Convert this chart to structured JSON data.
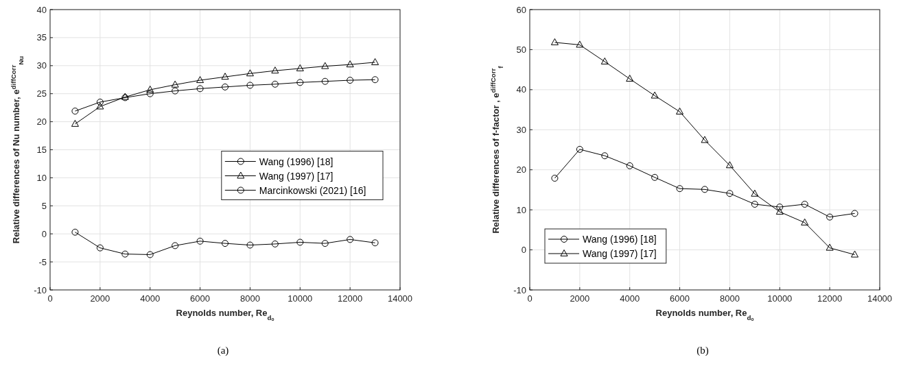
{
  "chart_data": [
    {
      "type": "line",
      "xlabel": "Reynolds number, Re$_{dₒ}$",
      "ylabel": "Relative differences of Nu number, e$^{diffCorr}$$_{Nu}$",
      "annotations": [
        "(a)"
      ],
      "x": [
        1000,
        2000,
        3000,
        4000,
        5000,
        6000,
        7000,
        8000,
        9000,
        10000,
        11000,
        12000,
        13000
      ],
      "xlim": [
        0,
        14000
      ],
      "xticks": [
        0,
        2000,
        4000,
        6000,
        8000,
        10000,
        12000,
        14000
      ],
      "ylim": [
        -10,
        40
      ],
      "yticks": [
        -10,
        -5,
        0,
        5,
        10,
        15,
        20,
        25,
        30,
        35,
        40
      ],
      "grid": true,
      "legend": "right",
      "line_style": "solid",
      "series": [
        {
          "name": "Wang (1996) [18]",
          "color": "#000000",
          "marker": "circle",
          "values": [
            21.9,
            23.5,
            24.3,
            25.0,
            25.5,
            25.9,
            26.2,
            26.5,
            26.7,
            27.0,
            27.2,
            27.4,
            27.5
          ]
        },
        {
          "name": "Wang (1997) [17]",
          "color": "#000000",
          "marker": "triangle",
          "values": [
            19.6,
            22.7,
            24.4,
            25.7,
            26.6,
            27.4,
            28.0,
            28.6,
            29.1,
            29.5,
            29.9,
            30.2,
            30.6
          ]
        },
        {
          "name": "Marcinkowski (2021) [16]",
          "color": "#000000",
          "marker": "circle",
          "values": [
            0.3,
            -2.5,
            -3.6,
            -3.7,
            -2.1,
            -1.3,
            -1.7,
            -2.0,
            -1.8,
            -1.5,
            -1.7,
            -1.0,
            -1.6
          ]
        }
      ]
    },
    {
      "type": "line",
      "xlabel": "Reynolds number, Re$_{dₒ}$",
      "ylabel": "Relative differences of f-factor , e$^{diffCorr}$$_{f}$",
      "annotations": [
        "(b)"
      ],
      "x": [
        1000,
        2000,
        3000,
        4000,
        5000,
        6000,
        7000,
        8000,
        9000,
        10000,
        11000,
        12000,
        13000
      ],
      "xlim": [
        0,
        14000
      ],
      "xticks": [
        0,
        2000,
        4000,
        6000,
        8000,
        10000,
        12000,
        14000
      ],
      "ylim": [
        -10,
        60
      ],
      "yticks": [
        -10,
        0,
        10,
        20,
        30,
        40,
        50,
        60
      ],
      "grid": true,
      "legend": "bottom left",
      "line_style": "solid",
      "series": [
        {
          "name": "Wang (1996) [18]",
          "color": "#000000",
          "marker": "circle",
          "values": [
            17.9,
            25.1,
            23.5,
            21.0,
            18.1,
            15.3,
            15.1,
            14.1,
            11.4,
            10.7,
            11.4,
            8.2,
            9.1
          ]
        },
        {
          "name": "Wang (1997) [17]",
          "color": "#000000",
          "marker": "triangle",
          "values": [
            51.8,
            51.2,
            47.0,
            42.7,
            38.5,
            34.5,
            27.4,
            21.1,
            14.0,
            9.5,
            6.8,
            0.5,
            -1.2
          ]
        }
      ]
    }
  ]
}
